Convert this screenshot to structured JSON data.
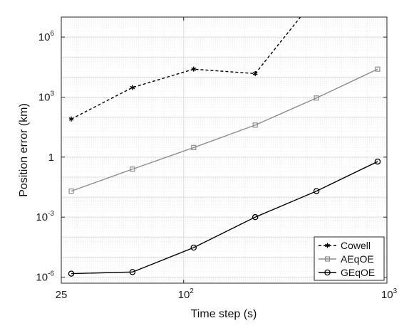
{
  "chart_data": {
    "type": "line",
    "xscale": "log",
    "yscale": "log",
    "xlabel": "Time step (s)",
    "ylabel": "Position error (km)",
    "xlim": [
      25,
      1000
    ],
    "ylim": [
      5e-07,
      10000000
    ],
    "grid": true,
    "legend_position": "bottom-right",
    "x_ticks": [
      {
        "value": 25,
        "base": "25",
        "exp": ""
      },
      {
        "value": 100,
        "base": "10",
        "exp": "2"
      },
      {
        "value": 1000,
        "base": "10",
        "exp": "3"
      }
    ],
    "y_ticks": [
      {
        "value": 1e-06,
        "base": "10",
        "exp": "-6"
      },
      {
        "value": 0.001,
        "base": "10",
        "exp": "-3"
      },
      {
        "value": 1,
        "base": "1",
        "exp": ""
      },
      {
        "value": 1000,
        "base": "10",
        "exp": "3"
      },
      {
        "value": 1000000,
        "base": "10",
        "exp": "6"
      }
    ],
    "series": [
      {
        "name": "Cowell",
        "color": "#000000",
        "line_style": "dashed",
        "marker": "asterisk",
        "x": [
          28,
          56,
          112,
          225,
          450
        ],
        "y": [
          80,
          3000,
          25000,
          15000,
          100000000
        ]
      },
      {
        "name": "AEqOE",
        "color": "#8c8c8c",
        "line_style": "solid",
        "marker": "square",
        "x": [
          28,
          56,
          112,
          225,
          450,
          900
        ],
        "y": [
          0.02,
          0.25,
          3,
          40,
          900,
          25000
        ]
      },
      {
        "name": "GEqOE",
        "color": "#000000",
        "line_style": "solid",
        "marker": "circle",
        "x": [
          28,
          56,
          112,
          225,
          450,
          900
        ],
        "y": [
          1.5e-06,
          1.8e-06,
          3e-05,
          0.001,
          0.02,
          0.6
        ]
      }
    ]
  }
}
